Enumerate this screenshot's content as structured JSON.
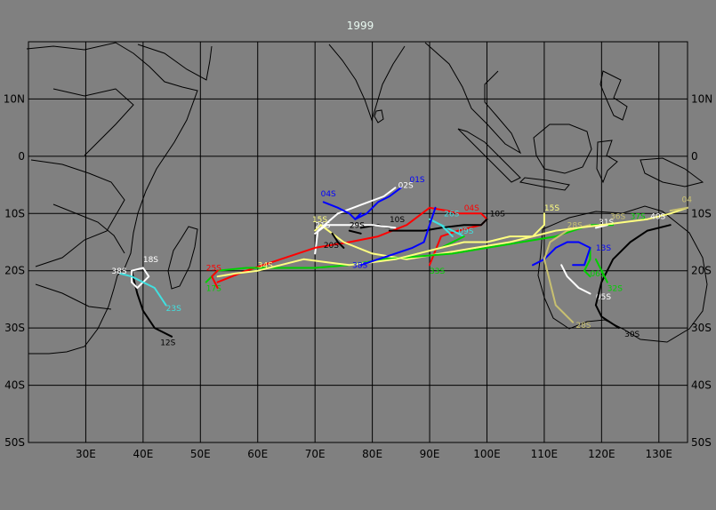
{
  "title": "1999",
  "colors": {
    "background": "#808080",
    "grid": "#000000",
    "title": "#e8f8f0",
    "red": "#ff0000",
    "white": "#ffffff",
    "yellow": "#ffff80",
    "green": "#00d000",
    "blue": "#0000ff",
    "cyan": "#40e0e0",
    "black": "#000000",
    "olive": "#c8c070"
  },
  "map": {
    "lon_range": [
      20,
      135
    ],
    "lat_range": [
      -50,
      20
    ],
    "lon_ticks": [
      {
        "value": 30,
        "label": "30E"
      },
      {
        "value": 40,
        "label": "40E"
      },
      {
        "value": 50,
        "label": "50E"
      },
      {
        "value": 60,
        "label": "60E"
      },
      {
        "value": 70,
        "label": "70E"
      },
      {
        "value": 80,
        "label": "80E"
      },
      {
        "value": 90,
        "label": "90E"
      },
      {
        "value": 100,
        "label": "100E"
      },
      {
        "value": 110,
        "label": "110E"
      },
      {
        "value": 120,
        "label": "120E"
      },
      {
        "value": 130,
        "label": "130E"
      }
    ],
    "lat_ticks": [
      {
        "value": 10,
        "label": "10N"
      },
      {
        "value": 0,
        "label": "0"
      },
      {
        "value": -10,
        "label": "10S"
      },
      {
        "value": -20,
        "label": "20S"
      },
      {
        "value": -30,
        "label": "30S"
      },
      {
        "value": -40,
        "label": "40S"
      },
      {
        "value": -50,
        "label": "50S"
      }
    ]
  },
  "storms": [
    {
      "label": "01S",
      "color": "blue",
      "label_at": [
        86.5,
        -4.5
      ],
      "points": [
        [
          77,
          -11
        ],
        [
          79,
          -10
        ],
        [
          81,
          -8
        ],
        [
          83,
          -7
        ],
        [
          85,
          -5.5
        ]
      ]
    },
    {
      "label": "02S",
      "color": "white",
      "label_at": [
        84.5,
        -5.5
      ],
      "points": [
        [
          70,
          -17
        ],
        [
          70.5,
          -13
        ],
        [
          74,
          -10
        ],
        [
          78,
          -8.5
        ],
        [
          82,
          -7
        ],
        [
          84,
          -5.5
        ]
      ]
    },
    {
      "label": "04S",
      "color": "blue",
      "label_at": [
        71,
        -7
      ],
      "points": [
        [
          71.5,
          -8
        ],
        [
          74,
          -9
        ],
        [
          76,
          -10
        ],
        [
          77,
          -11
        ],
        [
          78,
          -10
        ]
      ]
    },
    {
      "label": "04S",
      "color": "red",
      "label_at": [
        96,
        -9.5
      ],
      "points": [
        [
          53,
          -22
        ],
        [
          58,
          -20
        ],
        [
          64,
          -18
        ],
        [
          70,
          -16
        ],
        [
          76,
          -15
        ],
        [
          81,
          -14
        ],
        [
          86,
          -12
        ],
        [
          90,
          -9
        ],
        [
          93,
          -9.5
        ],
        [
          95,
          -10
        ],
        [
          97,
          -10
        ],
        [
          99,
          -10
        ],
        [
          100,
          -11
        ],
        [
          99,
          -12
        ],
        [
          95,
          -13
        ],
        [
          92,
          -14
        ],
        [
          90,
          -19
        ]
      ]
    },
    {
      "label": "05S",
      "color": "white",
      "label_at": [
        119,
        -25
      ],
      "points": [
        [
          113,
          -19
        ],
        [
          114,
          -21
        ],
        [
          116,
          -23
        ],
        [
          118,
          -24
        ]
      ]
    },
    {
      "label": "06S",
      "color": "green",
      "label_at": [
        118,
        -21
      ],
      "points": [
        [
          118,
          -16
        ],
        [
          118,
          -18
        ],
        [
          117,
          -20
        ],
        [
          118,
          -21
        ]
      ]
    },
    {
      "label": "09S",
      "color": "cyan",
      "label_at": [
        95,
        -13.5
      ],
      "points": [
        [
          90,
          -11
        ],
        [
          92,
          -12
        ],
        [
          94,
          -13
        ],
        [
          96,
          -14
        ]
      ]
    },
    {
      "label": "10S",
      "color": "black",
      "label_at": [
        100.5,
        -10.5
      ],
      "points": [
        [
          83,
          -13
        ],
        [
          86,
          -13
        ],
        [
          89,
          -13
        ],
        [
          92,
          -12.5
        ],
        [
          96,
          -12
        ],
        [
          99,
          -12
        ],
        [
          100,
          -11
        ]
      ]
    },
    {
      "label": "10S",
      "color": "black",
      "label_at": [
        83,
        -11.5
      ],
      "points": [
        [
          78,
          -12.5
        ],
        [
          81,
          -12
        ],
        [
          83,
          -12.5
        ]
      ]
    },
    {
      "label": "12S",
      "color": "black",
      "label_at": [
        43,
        -33
      ],
      "points": [
        [
          38,
          -20
        ],
        [
          39,
          -24
        ],
        [
          40,
          -27
        ],
        [
          42,
          -30
        ],
        [
          45,
          -31.5
        ]
      ]
    },
    {
      "label": "13S",
      "color": "blue",
      "label_at": [
        119,
        -16.5
      ],
      "points": [
        [
          108,
          -19
        ],
        [
          110,
          -18
        ],
        [
          112,
          -16
        ],
        [
          114,
          -15
        ],
        [
          116,
          -15
        ],
        [
          118,
          -16
        ],
        [
          117,
          -19
        ],
        [
          115,
          -19
        ]
      ]
    },
    {
      "label": "15S",
      "color": "yellow",
      "label_at": [
        110,
        -9.5
      ],
      "points": [
        [
          71,
          -12
        ],
        [
          75,
          -15
        ],
        [
          80,
          -17
        ],
        [
          86,
          -18
        ],
        [
          92,
          -17
        ],
        [
          98,
          -16
        ],
        [
          104,
          -15
        ],
        [
          108,
          -14
        ],
        [
          110,
          -12
        ],
        [
          110,
          -10
        ]
      ]
    },
    {
      "label": "15S",
      "color": "yellow",
      "label_at": [
        69.5,
        -11.5
      ],
      "points": [
        [
          70,
          -13
        ],
        [
          71,
          -12
        ]
      ]
    },
    {
      "label": "17S",
      "color": "green",
      "label_at": [
        51,
        -23.5
      ],
      "points": [
        [
          51,
          -22
        ],
        [
          53,
          -20
        ],
        [
          58,
          -19.5
        ],
        [
          64,
          -19.5
        ],
        [
          70,
          -19.5
        ],
        [
          76,
          -19
        ],
        [
          82,
          -18
        ],
        [
          88,
          -17.5
        ],
        [
          94,
          -17
        ],
        [
          100,
          -16
        ],
        [
          106,
          -15
        ],
        [
          112,
          -14
        ],
        [
          118,
          -12
        ],
        [
          122,
          -12
        ]
      ]
    },
    {
      "label": "18S",
      "color": "white",
      "label_at": [
        40,
        -18.5
      ],
      "points": [
        [
          38,
          -20
        ],
        [
          40,
          -19.5
        ],
        [
          41,
          -21
        ],
        [
          39,
          -23
        ],
        [
          38,
          -22
        ],
        [
          38,
          -20
        ]
      ]
    },
    {
      "label": "20S",
      "color": "black",
      "label_at": [
        71.5,
        -16
      ],
      "points": [
        [
          73,
          -13.5
        ],
        [
          74,
          -15
        ],
        [
          75,
          -16
        ]
      ]
    },
    {
      "label": "21S",
      "color": "white",
      "label_at": [
        70,
        -12.5
      ],
      "points": [
        [
          70,
          -13.5
        ],
        [
          72,
          -12
        ],
        [
          76,
          -12
        ],
        [
          80,
          -12
        ],
        [
          84,
          -12.5
        ]
      ]
    },
    {
      "label": "23S",
      "color": "cyan",
      "label_at": [
        44,
        -27
      ],
      "points": [
        [
          36,
          -20.5
        ],
        [
          38,
          -21
        ],
        [
          40,
          -22
        ],
        [
          42,
          -23
        ],
        [
          44,
          -26
        ]
      ]
    },
    {
      "label": "25S",
      "color": "red",
      "label_at": [
        51,
        -20
      ],
      "points": [
        [
          53,
          -23
        ],
        [
          52,
          -21
        ],
        [
          53,
          -20
        ]
      ]
    },
    {
      "label": "26S",
      "color": "cyan",
      "label_at": [
        92.5,
        -10.5
      ],
      "points": [
        [
          92,
          -12
        ],
        [
          93,
          -13
        ],
        [
          94,
          -14
        ]
      ]
    },
    {
      "label": "28S",
      "color": "olive",
      "label_at": [
        114,
        -12.5
      ],
      "points": [
        [
          118,
          -12
        ],
        [
          114,
          -13
        ],
        [
          111,
          -15
        ],
        [
          110,
          -18
        ],
        [
          111,
          -22
        ],
        [
          112,
          -26
        ],
        [
          114,
          -28
        ],
        [
          115,
          -29
        ]
      ]
    },
    {
      "label": "28S",
      "color": "olive",
      "label_at": [
        115.5,
        -30
      ],
      "points": [
        [
          115,
          -29
        ]
      ]
    },
    {
      "label": "29S",
      "color": "black",
      "label_at": [
        76,
        -12.5
      ],
      "points": [
        [
          76,
          -13
        ],
        [
          78,
          -13.5
        ]
      ]
    },
    {
      "label": "30S",
      "color": "black",
      "label_at": [
        124,
        -31.5
      ],
      "points": [
        [
          132,
          -12
        ],
        [
          128,
          -13
        ],
        [
          125,
          -15
        ],
        [
          122,
          -18
        ],
        [
          120,
          -22
        ],
        [
          119,
          -26
        ],
        [
          120,
          -28
        ],
        [
          123,
          -30
        ]
      ]
    },
    {
      "label": "31S",
      "color": "white",
      "label_at": [
        119.5,
        -12
      ],
      "points": [
        [
          119,
          -12.5
        ],
        [
          121,
          -12
        ]
      ]
    },
    {
      "label": "32S",
      "color": "green",
      "label_at": [
        121,
        -23.5
      ],
      "points": [
        [
          119,
          -18
        ],
        [
          120,
          -20
        ],
        [
          121,
          -22
        ]
      ]
    },
    {
      "label": "33S",
      "color": "green",
      "label_at": [
        90,
        -20.5
      ],
      "points": [
        [
          84,
          -18
        ],
        [
          88,
          -17
        ],
        [
          92,
          -16
        ],
        [
          96,
          -14
        ]
      ]
    },
    {
      "label": "34S",
      "color": "yellow",
      "label_at": [
        60,
        -19.5
      ],
      "points": [
        [
          53,
          -21
        ],
        [
          56,
          -20.5
        ],
        [
          60,
          -20
        ],
        [
          64,
          -19
        ],
        [
          68,
          -18
        ],
        [
          72,
          -18.5
        ],
        [
          76,
          -19
        ],
        [
          80,
          -18.5
        ],
        [
          84,
          -18
        ],
        [
          88,
          -17
        ],
        [
          92,
          -16
        ],
        [
          96,
          -15
        ],
        [
          100,
          -15
        ],
        [
          104,
          -14
        ],
        [
          108,
          -14
        ],
        [
          112,
          -13
        ],
        [
          116,
          -12.5
        ],
        [
          120,
          -12
        ],
        [
          124,
          -11.5
        ],
        [
          128,
          -11
        ],
        [
          132,
          -10
        ],
        [
          135,
          -9
        ]
      ]
    },
    {
      "label": "36S",
      "color": "olive",
      "label_at": [
        121.5,
        -11
      ],
      "points": [
        [
          121,
          -12
        ]
      ]
    },
    {
      "label": "37S",
      "color": "green",
      "label_at": [
        125,
        -11
      ],
      "points": [
        [
          125,
          -12
        ]
      ]
    },
    {
      "label": "38S",
      "color": "white",
      "label_at": [
        34.5,
        -20.5
      ],
      "points": [
        [
          36,
          -21
        ]
      ]
    },
    {
      "label": "38S",
      "color": "blue",
      "label_at": [
        76.5,
        -19.5
      ],
      "points": [
        [
          78,
          -19
        ],
        [
          81,
          -18
        ],
        [
          84,
          -17
        ],
        [
          87,
          -16
        ],
        [
          89,
          -15
        ],
        [
          90,
          -12
        ],
        [
          91,
          -9
        ]
      ]
    },
    {
      "label": "40S",
      "color": "white",
      "label_at": [
        128.5,
        -11
      ],
      "points": [
        [
          128,
          -12
        ]
      ]
    },
    {
      "label": "04",
      "color": "olive",
      "label_at": [
        134,
        -8
      ],
      "points": [
        [
          132,
          -9.5
        ],
        [
          135,
          -9
        ]
      ]
    }
  ]
}
